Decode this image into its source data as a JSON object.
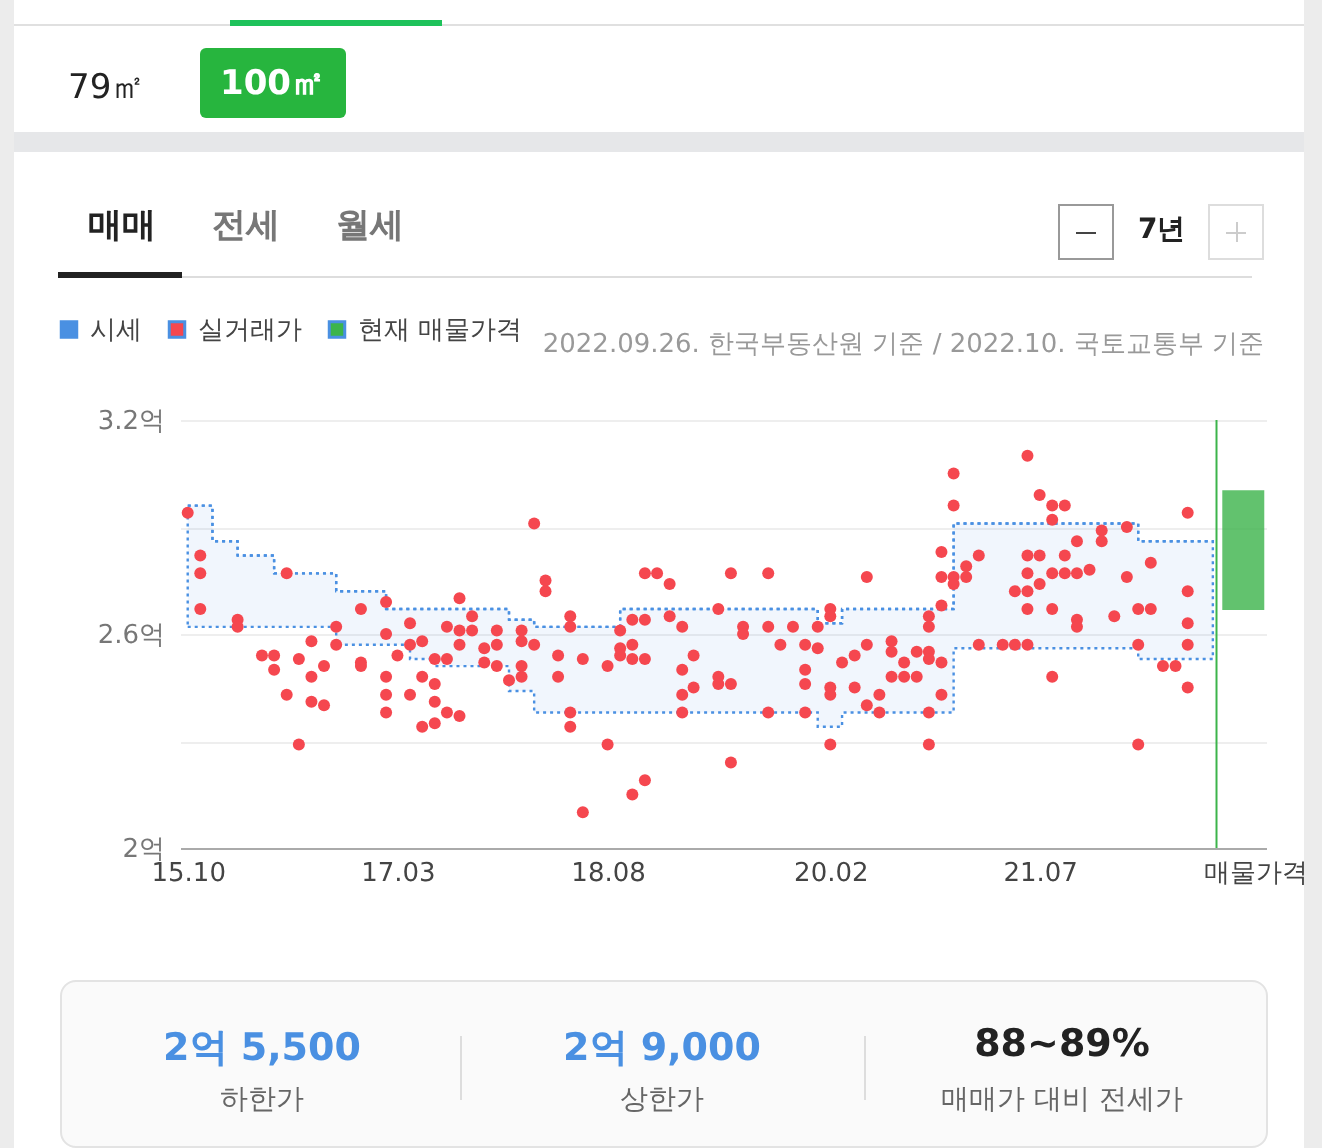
{
  "chart_data": {
    "type": "scatter",
    "grid": "y",
    "legend": "top left",
    "xlim": [
      "2015-09-12",
      "2023-01-10"
    ],
    "xticks": [
      {
        "value": "2015-10",
        "label": "15.10"
      },
      {
        "value": "2017-03",
        "label": "17.03"
      },
      {
        "value": "2018-08",
        "label": "18.08"
      },
      {
        "value": "2020-02",
        "label": "20.02"
      },
      {
        "value": "2021-07",
        "label": "21.07"
      },
      {
        "value": "2022-12-15",
        "label": "매물가격"
      }
    ],
    "ylim": [
      2,
      3.2
    ],
    "yticks": [
      {
        "value": 2,
        "label": "2억"
      },
      {
        "value": 2.3,
        "label": null
      },
      {
        "value": 2.6,
        "label": "2.6억"
      },
      {
        "value": 2.9,
        "label": null
      },
      {
        "value": 3.2,
        "label": "3.2억"
      }
    ],
    "ref_lines": [
      {
        "axis": "x",
        "value": "2022-09-10",
        "color": "#3cb44b"
      }
    ],
    "annotations": [
      "2022.09.26. 한국부동산원 기준 / 2022.10. 국토교통부 기준",
      "79㎡",
      "100㎡",
      "매매",
      "전세",
      "월세",
      "7년",
      "2억 5,500",
      "하한가",
      "2억 9,000",
      "상한가",
      "88~89%",
      "매매가 대비 전세가"
    ],
    "series": [
      {
        "name": "시세",
        "type": "step",
        "color": "#4a90e2",
        "line_style": "dotted",
        "x": [
          "2015-10",
          "2015-12",
          "2016-02",
          "2016-05",
          "2016-10",
          "2017-02",
          "2017-04",
          "2017-06",
          "2017-12",
          "2018-02",
          "2018-09",
          "2020-01",
          "2020-03",
          "2020-12",
          "2022-03",
          "2022-09"
        ],
        "values": [
          2.96,
          2.86,
          2.82,
          2.77,
          2.72,
          2.67,
          2.67,
          2.67,
          2.64,
          2.62,
          2.67,
          2.63,
          2.67,
          2.91,
          2.86,
          2.86
        ],
        "lower": [
          2.62,
          2.62,
          2.62,
          2.62,
          2.57,
          2.57,
          2.53,
          2.51,
          2.44,
          2.38,
          2.38,
          2.34,
          2.38,
          2.56,
          2.53,
          2.53
        ],
        "upper": [
          2.96,
          2.86,
          2.82,
          2.77,
          2.72,
          2.67,
          2.67,
          2.67,
          2.64,
          2.62,
          2.67,
          2.63,
          2.67,
          2.91,
          2.86,
          2.86
        ]
      },
      {
        "name": "실거래가",
        "marker": "circle",
        "color": "#f5474f",
        "x": [
          "2015-10",
          "2015-11",
          "2015-11",
          "2015-11",
          "2016-02",
          "2016-02",
          "2016-04",
          "2016-05",
          "2016-05",
          "2016-06",
          "2016-06",
          "2016-07",
          "2016-07",
          "2016-08",
          "2016-08",
          "2016-08",
          "2016-09",
          "2016-09",
          "2016-10",
          "2016-10",
          "2016-12",
          "2016-12",
          "2016-12",
          "2017-02",
          "2017-02",
          "2017-02",
          "2017-02",
          "2017-02",
          "2017-03",
          "2017-04",
          "2017-04",
          "2017-04",
          "2017-05",
          "2017-05",
          "2017-05",
          "2017-06",
          "2017-06",
          "2017-06",
          "2017-06",
          "2017-07",
          "2017-07",
          "2017-07",
          "2017-08",
          "2017-08",
          "2017-08",
          "2017-08",
          "2017-09",
          "2017-09",
          "2017-10",
          "2017-10",
          "2017-11",
          "2017-11",
          "2017-11",
          "2017-12",
          "2018-01",
          "2018-01",
          "2018-01",
          "2018-01",
          "2018-02",
          "2018-02",
          "2018-03",
          "2018-03",
          "2018-04",
          "2018-04",
          "2018-05",
          "2018-05",
          "2018-05",
          "2018-05",
          "2018-06",
          "2018-06",
          "2018-08",
          "2018-08",
          "2018-09",
          "2018-09",
          "2018-09",
          "2018-10",
          "2018-10",
          "2018-10",
          "2018-10",
          "2018-11",
          "2018-11",
          "2018-11",
          "2018-11",
          "2018-12",
          "2019-01",
          "2019-01",
          "2019-02",
          "2019-02",
          "2019-02",
          "2019-02",
          "2019-03",
          "2019-03",
          "2019-05",
          "2019-05",
          "2019-05",
          "2019-06",
          "2019-06",
          "2019-06",
          "2019-07",
          "2019-07",
          "2019-09",
          "2019-09",
          "2019-09",
          "2019-10",
          "2019-11",
          "2019-12",
          "2019-12",
          "2019-12",
          "2019-12",
          "2020-01",
          "2020-01",
          "2020-02",
          "2020-02",
          "2020-02",
          "2020-02",
          "2020-02",
          "2020-03",
          "2020-04",
          "2020-04",
          "2020-05",
          "2020-05",
          "2020-05",
          "2020-06",
          "2020-06",
          "2020-07",
          "2020-07",
          "2020-07",
          "2020-08",
          "2020-08",
          "2020-09",
          "2020-09",
          "2020-10",
          "2020-10",
          "2020-10",
          "2020-10",
          "2020-10",
          "2020-10",
          "2020-11",
          "2020-11",
          "2020-11",
          "2020-11",
          "2020-11",
          "2020-12",
          "2020-12",
          "2020-12",
          "2020-12",
          "2021-01",
          "2021-01",
          "2021-02",
          "2021-02",
          "2021-04",
          "2021-05",
          "2021-05",
          "2021-06",
          "2021-06",
          "2021-06",
          "2021-06",
          "2021-06",
          "2021-06",
          "2021-07",
          "2021-07",
          "2021-07",
          "2021-08",
          "2021-08",
          "2021-08",
          "2021-08",
          "2021-08",
          "2021-09",
          "2021-09",
          "2021-09",
          "2021-10",
          "2021-10",
          "2021-10",
          "2021-10",
          "2021-11",
          "2021-12",
          "2021-12",
          "2022-01",
          "2022-02",
          "2022-02",
          "2022-03",
          "2022-03",
          "2022-03",
          "2022-04",
          "2022-04",
          "2022-05",
          "2022-06",
          "2022-07",
          "2022-07",
          "2022-07",
          "2022-07",
          "2022-07"
        ],
        "values": [
          2.94,
          2.82,
          2.77,
          2.67,
          2.64,
          2.62,
          2.54,
          2.54,
          2.5,
          2.77,
          2.43,
          2.53,
          2.29,
          2.58,
          2.48,
          2.41,
          2.51,
          2.4,
          2.62,
          2.57,
          2.67,
          2.52,
          2.51,
          2.69,
          2.6,
          2.48,
          2.43,
          2.38,
          2.54,
          2.63,
          2.57,
          2.43,
          2.58,
          2.48,
          2.34,
          2.53,
          2.46,
          2.41,
          2.35,
          2.62,
          2.53,
          2.38,
          2.7,
          2.61,
          2.57,
          2.37,
          2.65,
          2.61,
          2.56,
          2.52,
          2.61,
          2.57,
          2.51,
          2.47,
          2.61,
          2.58,
          2.51,
          2.48,
          2.91,
          2.57,
          2.75,
          2.72,
          2.54,
          2.48,
          2.65,
          2.62,
          2.38,
          2.34,
          2.53,
          2.1,
          2.51,
          2.29,
          2.61,
          2.56,
          2.54,
          2.64,
          2.57,
          2.53,
          2.15,
          2.77,
          2.64,
          2.53,
          2.19,
          2.77,
          2.74,
          2.65,
          2.62,
          2.5,
          2.43,
          2.38,
          2.54,
          2.45,
          2.67,
          2.48,
          2.46,
          2.77,
          2.46,
          2.24,
          2.62,
          2.6,
          2.77,
          2.62,
          2.38,
          2.57,
          2.62,
          2.57,
          2.5,
          2.46,
          2.38,
          2.62,
          2.56,
          2.67,
          2.65,
          2.45,
          2.43,
          2.29,
          2.52,
          2.54,
          2.45,
          2.76,
          2.57,
          2.4,
          2.43,
          2.38,
          2.58,
          2.55,
          2.48,
          2.52,
          2.48,
          2.55,
          2.48,
          2.65,
          2.62,
          2.55,
          2.53,
          2.38,
          2.29,
          2.83,
          2.76,
          2.68,
          2.52,
          2.43,
          3.05,
          2.96,
          2.76,
          2.74,
          2.79,
          2.76,
          2.82,
          2.57,
          2.57,
          2.72,
          2.57,
          3.1,
          2.82,
          2.77,
          2.72,
          2.67,
          2.57,
          2.99,
          2.82,
          2.74,
          2.96,
          2.92,
          2.77,
          2.67,
          2.48,
          2.96,
          2.82,
          2.77,
          2.86,
          2.77,
          2.64,
          2.62,
          2.78,
          2.89,
          2.86,
          2.65,
          2.9,
          2.76,
          2.67,
          2.57,
          2.29,
          2.8,
          2.67,
          2.51,
          2.51,
          2.94,
          2.72,
          2.63,
          2.57,
          2.45
        ]
      },
      {
        "name": "현재 매물가격",
        "type": "bar",
        "color": "#3cb44b",
        "x": [
          "2022-11-15"
        ],
        "base": [
          2.67
        ],
        "values": [
          0.33
        ]
      }
    ]
  }
}
